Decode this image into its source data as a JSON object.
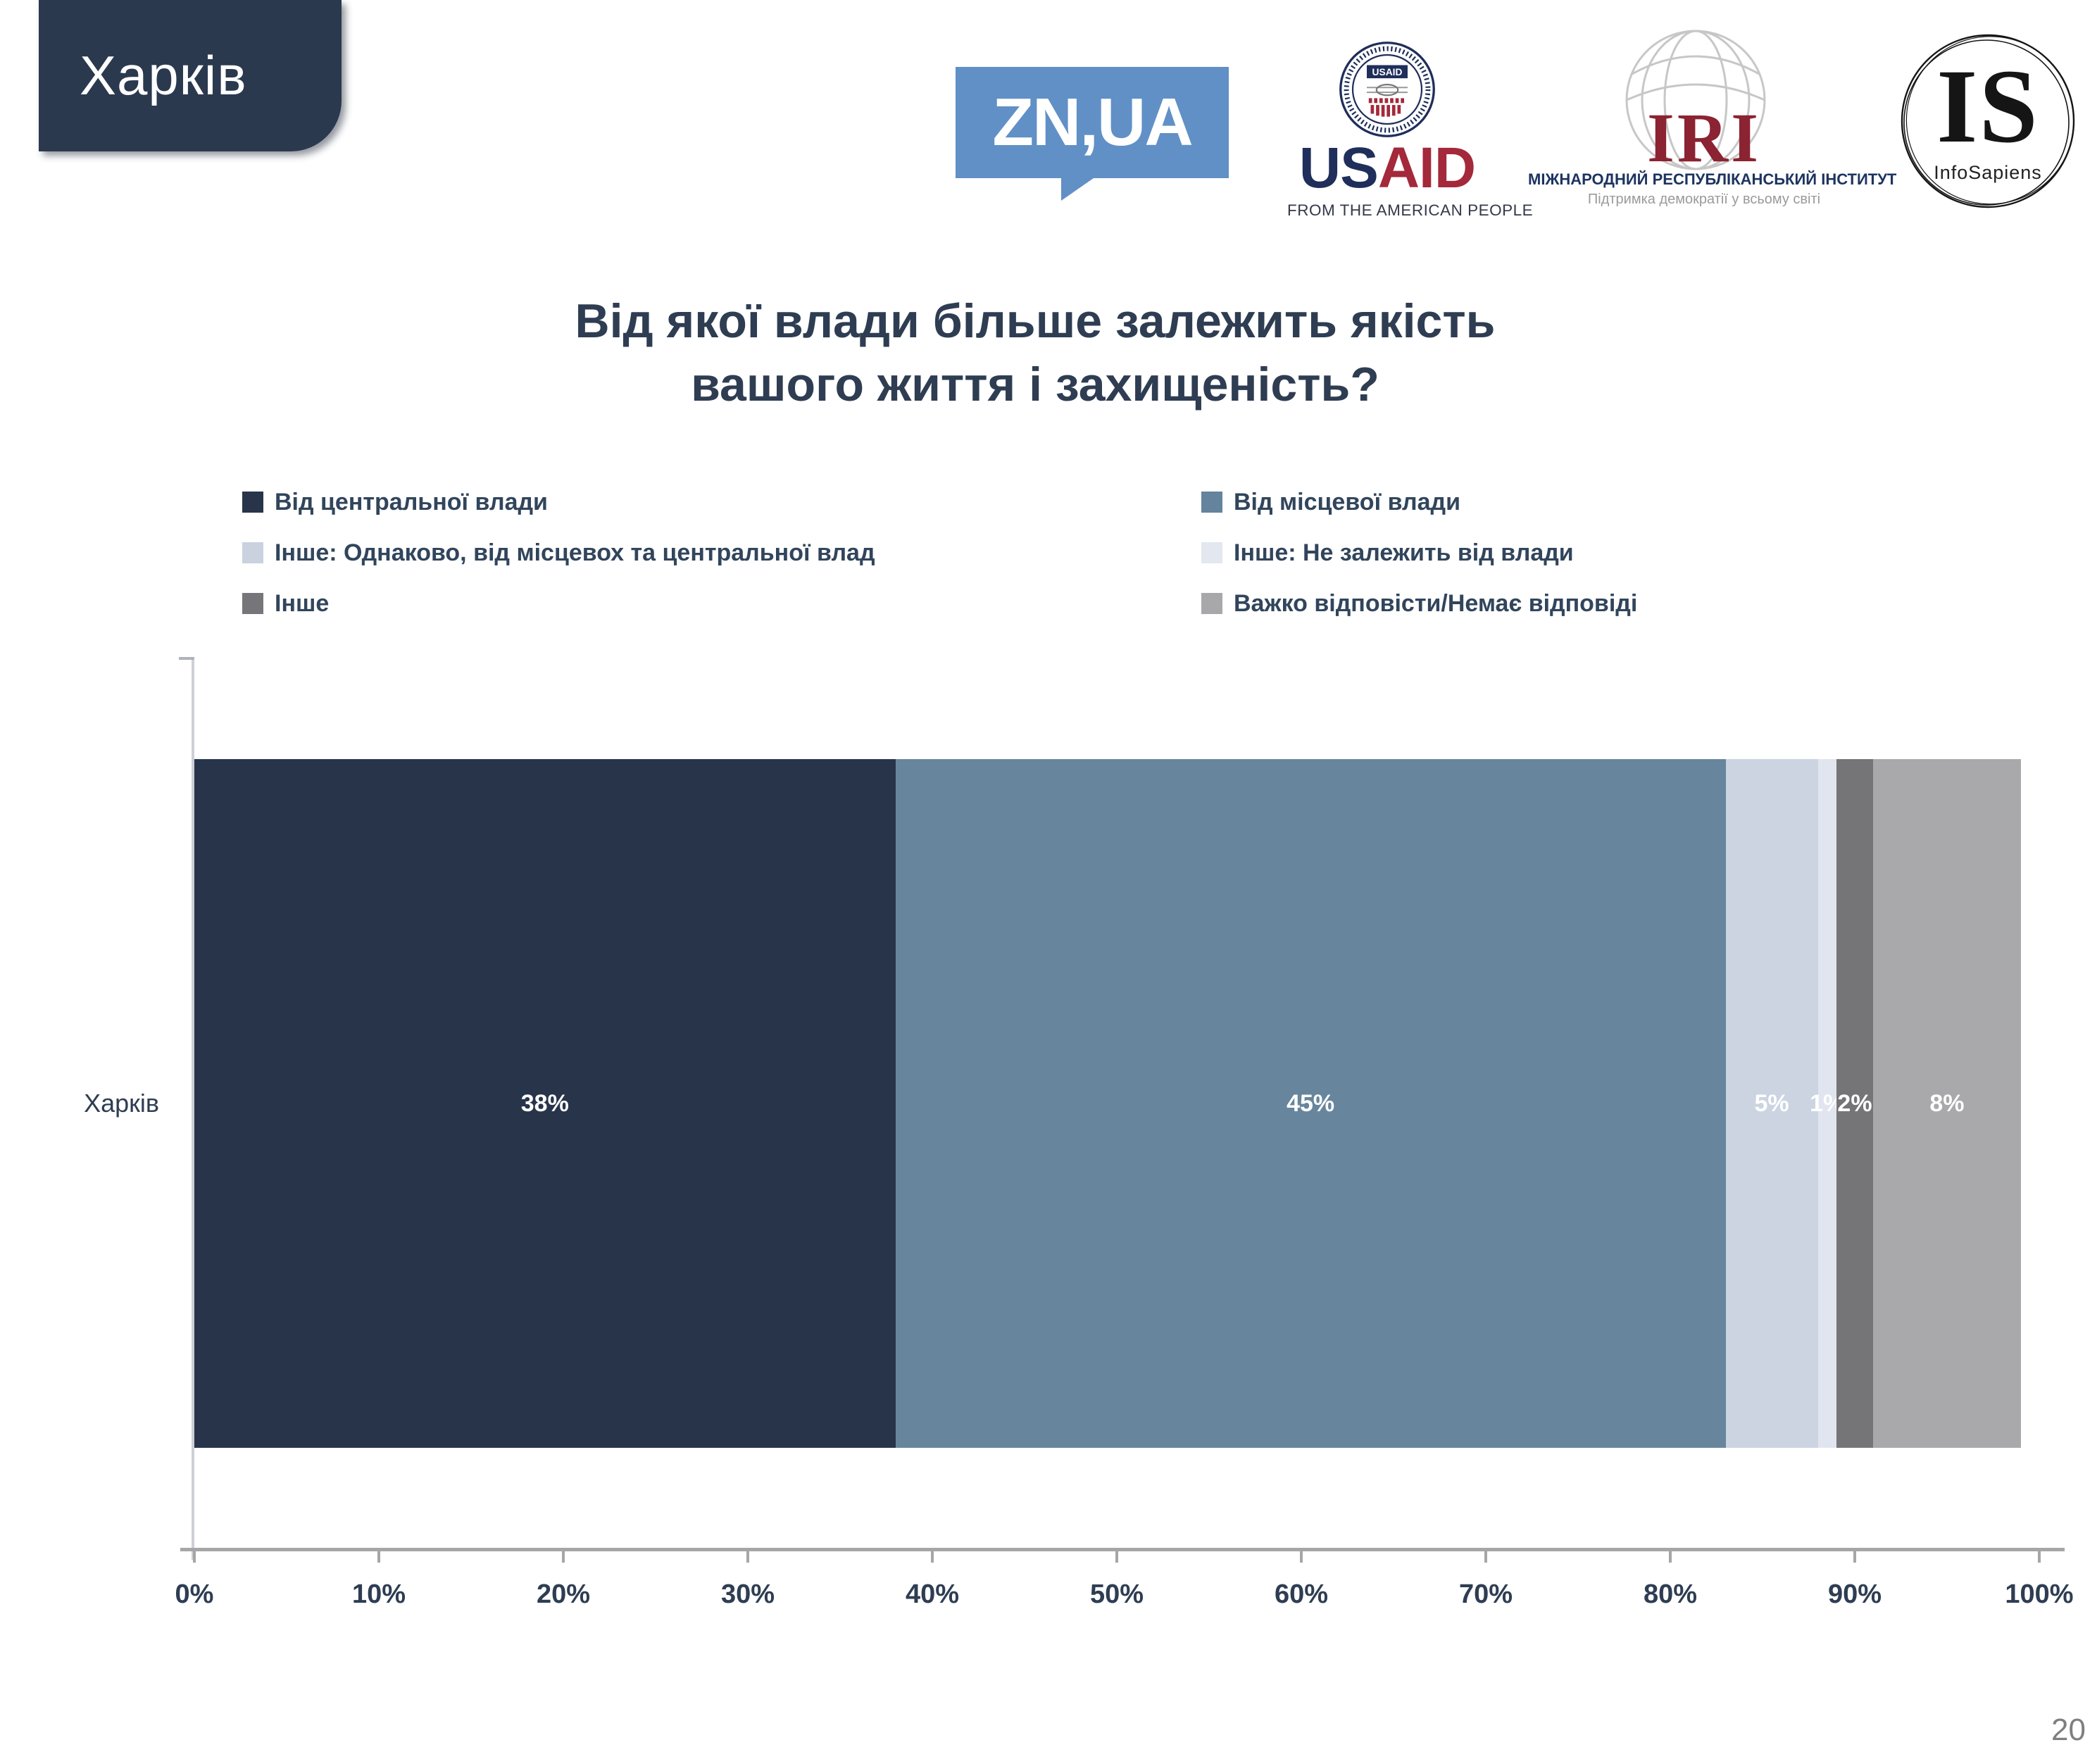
{
  "page": {
    "number": "20"
  },
  "header": {
    "region_label": "Харків"
  },
  "logos": {
    "znua": {
      "text": "ZN,UA",
      "bg_color": "#6090C6"
    },
    "usaid": {
      "seal_label": "USAID",
      "wordmark_us": "US",
      "wordmark_aid": "AID",
      "tagline": "FROM THE AMERICAN PEOPLE"
    },
    "iri": {
      "acronym": "IRI",
      "line1": "МІЖНАРОДНИЙ РЕСПУБЛІКАНСЬКИЙ ІНСТИТУТ",
      "line2": "Підтримка демократії у всьому світі"
    },
    "infosapiens": {
      "acronym": "IS",
      "name": "InfoSapiens"
    }
  },
  "title": {
    "line1": "Від якої влади більше залежить якість",
    "line2": "вашого життя і захищеність?"
  },
  "legend": {
    "left": [
      {
        "label": "Від центральної влади",
        "color": "#28344A"
      },
      {
        "label": "Інше: Однаково, від місцевох та центральної влад",
        "color": "#C9D2DE"
      },
      {
        "label": "Інше",
        "color": "#76767A"
      }
    ],
    "right": [
      {
        "label": "Від місцевої влади",
        "color": "#64839C"
      },
      {
        "label": "Інше: Не залежить від влади",
        "color": "#E2E7F0"
      },
      {
        "label": "Важко відповісти/Немає відповіді",
        "color": "#A8A8AA"
      }
    ]
  },
  "chart_data": {
    "type": "bar",
    "orientation": "horizontal-stacked",
    "categories": [
      "Харків"
    ],
    "series": [
      {
        "name": "Від центральної влади",
        "values": [
          38
        ],
        "color": "#28344A"
      },
      {
        "name": "Від місцевої влади",
        "values": [
          45
        ],
        "color": "#67869D"
      },
      {
        "name": "Інше: Однаково, від місцевох та центральної влад",
        "values": [
          5
        ],
        "color": "#CBD4E0"
      },
      {
        "name": "Інше: Не залежить від влади",
        "values": [
          1
        ],
        "color": "#E0E5EF"
      },
      {
        "name": "Інше",
        "values": [
          2
        ],
        "color": "#757578"
      },
      {
        "name": "Важко відповісти/Немає відповіді",
        "values": [
          8
        ],
        "color": "#A9A9AB"
      }
    ],
    "data_labels": [
      "38%",
      "45%",
      "5%",
      "1%",
      "2%",
      "8%"
    ],
    "data_label_color": "#FFFFFF",
    "x_ticks": [
      "0%",
      "10%",
      "20%",
      "30%",
      "40%",
      "50%",
      "60%",
      "70%",
      "80%",
      "90%",
      "100%"
    ],
    "xlim": [
      0,
      100
    ],
    "grid": false,
    "legend_position": "top"
  }
}
